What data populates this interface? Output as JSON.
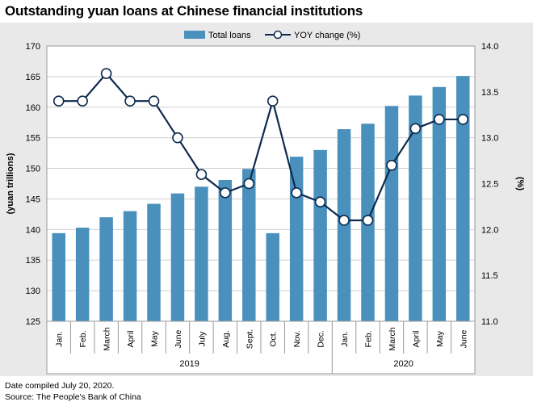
{
  "title": "Outstanding yuan loans at Chinese financial institutions",
  "footer": {
    "line1": "Date compiled July 20, 2020.",
    "line2": "Source: The People's Bank of China"
  },
  "chart_data": {
    "type": "bar",
    "categories": [
      "Jan.",
      "Feb.",
      "March",
      "April",
      "May",
      "June",
      "July",
      "Aug.",
      "Sept.",
      "Oct.",
      "Nov.",
      "Dec.",
      "Jan.",
      "Feb.",
      "March",
      "April",
      "May",
      "June"
    ],
    "year_groups": [
      {
        "label": "2019",
        "count": 12
      },
      {
        "label": "2020",
        "count": 6
      }
    ],
    "series": [
      {
        "name": "Total loans",
        "type": "bar",
        "axis": "left",
        "color": "#4a90bd",
        "values": [
          139.4,
          140.3,
          142.0,
          143.0,
          144.2,
          145.9,
          147.0,
          148.1,
          149.9,
          139.4,
          151.9,
          153.0,
          156.4,
          157.3,
          160.2,
          161.9,
          163.3,
          165.1
        ]
      },
      {
        "name": "YOY change (%)",
        "type": "line",
        "axis": "right",
        "color": "#0d2a4e",
        "values": [
          13.4,
          13.4,
          13.7,
          13.4,
          13.4,
          13.0,
          12.6,
          12.4,
          12.5,
          13.4,
          12.4,
          12.3,
          12.1,
          12.1,
          12.7,
          13.1,
          13.2,
          13.2
        ]
      }
    ],
    "ylabel": "(yuan trillions)",
    "ylim": [
      125,
      170
    ],
    "yticks": [
      125,
      130,
      135,
      140,
      145,
      150,
      155,
      160,
      165,
      170
    ],
    "y2label": "(%)",
    "y2lim": [
      11.0,
      14.0
    ],
    "y2ticks": [
      "11.0",
      "11.5",
      "12.0",
      "12.5",
      "13.0",
      "13.5",
      "14.0"
    ],
    "grid": true,
    "legend": "top-center"
  }
}
